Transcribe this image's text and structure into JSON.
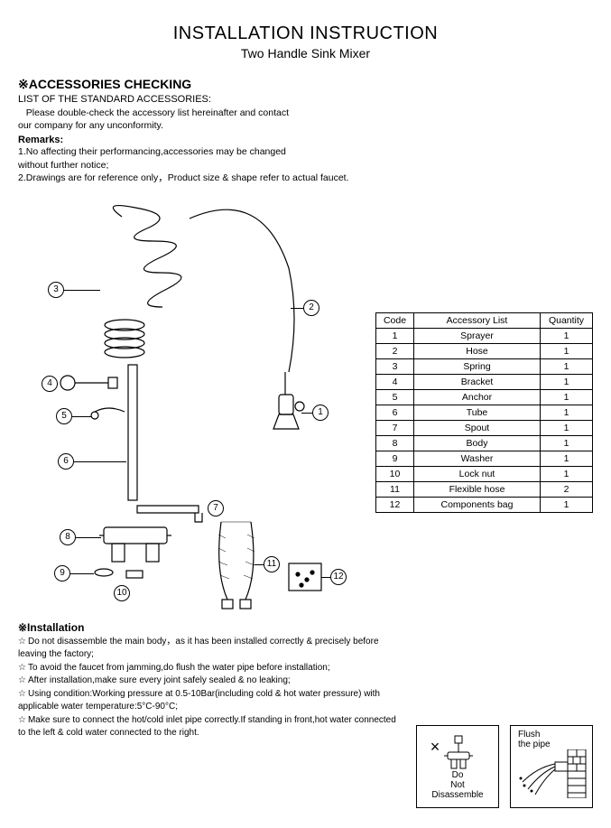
{
  "header": {
    "title": "INSTALLATION INSTRUCTION",
    "subtitle": "Two Handle Sink Mixer"
  },
  "accessories": {
    "heading": "※ACCESSORIES CHECKING",
    "list_heading": "LIST OF THE STANDARD ACCESSORIES:",
    "intro_line1": "   Please double-check the accessory list hereinafter and contact",
    "intro_line2": "our company for any unconformity.",
    "remarks_label": "Remarks:",
    "remark1_line1": "1.No affecting their performancing,accessories may be changed",
    "remark1_line2": "without further notice;",
    "remark2": "2.Drawings are for reference only，Product size & shape refer to actual faucet."
  },
  "table": {
    "headers": {
      "code": "Code",
      "name": "Accessory List",
      "qty": "Quantity"
    },
    "rows": [
      {
        "code": "1",
        "name": "Sprayer",
        "qty": "1"
      },
      {
        "code": "2",
        "name": "Hose",
        "qty": "1"
      },
      {
        "code": "3",
        "name": "Spring",
        "qty": "1"
      },
      {
        "code": "4",
        "name": "Bracket",
        "qty": "1"
      },
      {
        "code": "5",
        "name": "Anchor",
        "qty": "1"
      },
      {
        "code": "6",
        "name": "Tube",
        "qty": "1"
      },
      {
        "code": "7",
        "name": "Spout",
        "qty": "1"
      },
      {
        "code": "8",
        "name": "Body",
        "qty": "1"
      },
      {
        "code": "9",
        "name": "Washer",
        "qty": "1"
      },
      {
        "code": "10",
        "name": "Lock nut",
        "qty": "1"
      },
      {
        "code": "11",
        "name": "Flexible hose",
        "qty": "2"
      },
      {
        "code": "12",
        "name": "Components bag",
        "qty": "1"
      }
    ]
  },
  "callouts": {
    "c1": "1",
    "c2": "2",
    "c3": "3",
    "c4": "4",
    "c5": "5",
    "c6": "6",
    "c7": "7",
    "c8": "8",
    "c9": "9",
    "c10": "10",
    "c11": "11",
    "c12": "12"
  },
  "installation": {
    "heading": "※Installation",
    "items": [
      "Do not disassemble the main body，as it has been installed correctly & precisely before leaving the factory;",
      "To avoid the faucet from jamming,do flush the water pipe before installation;",
      "After installation,make sure every joint safely sealed & no leaking;",
      "Using condition:Working pressure at 0.5-10Bar(including cold & hot water pressure) with applicable water temperature:5°C-90°C;",
      "Make sure to connect the hot/cold inlet pipe correctly.If standing in front,hot water connected to the left & cold water connected to the right."
    ]
  },
  "boxes": {
    "box1_line1": "Do",
    "box1_line2": "Not",
    "box1_line3": "Disassemble",
    "box2_line1": "Flush",
    "box2_line2": "the pipe"
  },
  "style": {
    "text_color": "#000000",
    "bg_color": "#ffffff",
    "border_color": "#000000"
  }
}
